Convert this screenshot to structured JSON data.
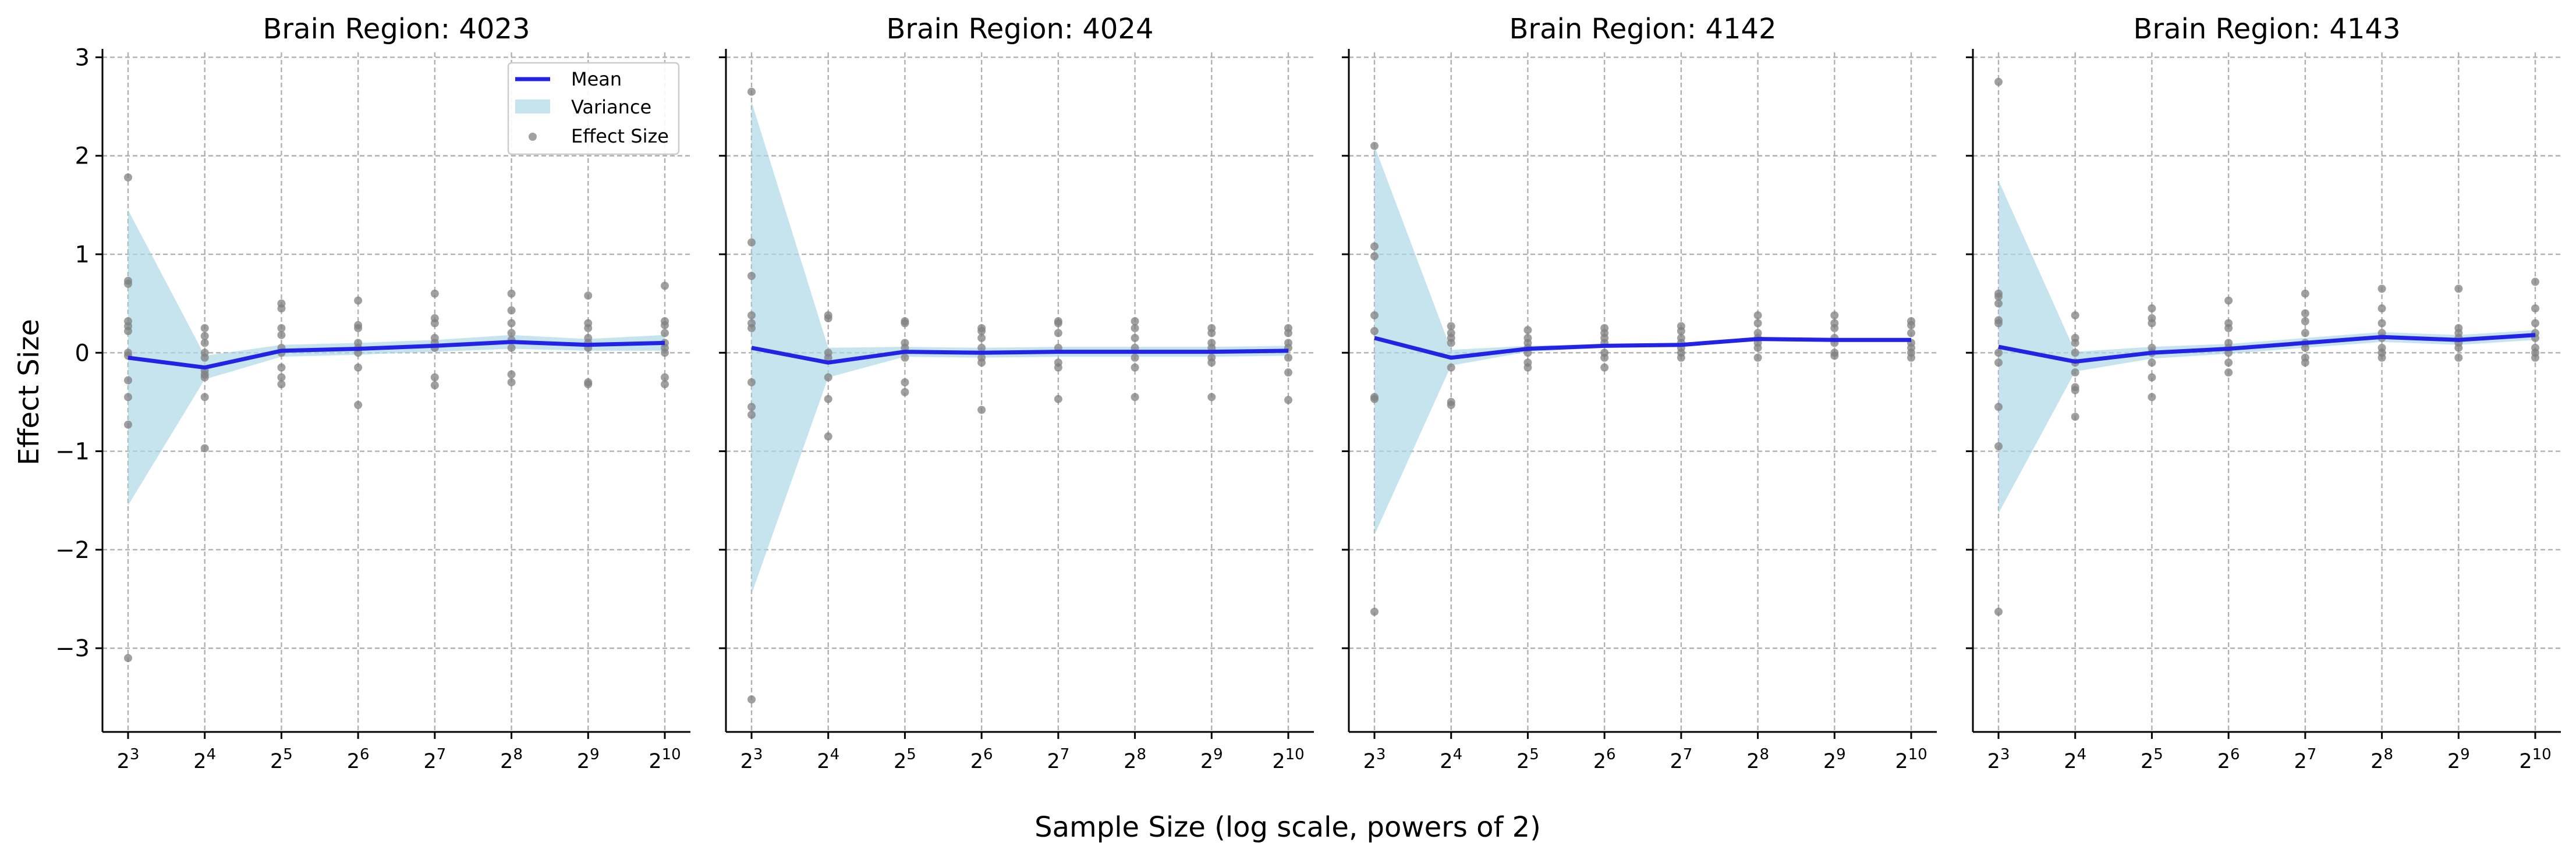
{
  "chart_data": {
    "type": "line",
    "xlabel": "Sample Size (log scale, powers of 2)",
    "ylabel": "Effect Size",
    "x_scale": "log2",
    "x_values": [
      8,
      16,
      32,
      64,
      128,
      256,
      512,
      1024
    ],
    "x_tick_labels": [
      {
        "base": "2",
        "exp": "3"
      },
      {
        "base": "2",
        "exp": "4"
      },
      {
        "base": "2",
        "exp": "5"
      },
      {
        "base": "2",
        "exp": "6"
      },
      {
        "base": "2",
        "exp": "7"
      },
      {
        "base": "2",
        "exp": "8"
      },
      {
        "base": "2",
        "exp": "9"
      },
      {
        "base": "2",
        "exp": "10"
      }
    ],
    "ylim": [
      -3.85,
      3.05
    ],
    "y_ticks": [
      3,
      2,
      1,
      0,
      -1,
      -2,
      -3
    ],
    "y_tick_labels": [
      "3",
      "2",
      "1",
      "0",
      "−1",
      "−2",
      "−3"
    ],
    "grid": true,
    "legend": {
      "placement": "top-right of first panel",
      "entries": [
        "Mean",
        "Variance",
        "Effect Size"
      ]
    },
    "colors": {
      "mean": "#2323e6",
      "variance": "#add8e6",
      "points": "#808080"
    },
    "panels": [
      {
        "title": "Brain Region: 4023",
        "mean": [
          -0.05,
          -0.15,
          0.02,
          0.04,
          0.07,
          0.11,
          0.08,
          0.1
        ],
        "var_upper": [
          1.45,
          -0.03,
          0.08,
          0.1,
          0.13,
          0.18,
          0.14,
          0.18
        ],
        "var_lower": [
          -1.55,
          -0.27,
          -0.04,
          -0.02,
          0.01,
          0.04,
          0.02,
          0.02
        ],
        "points": [
          [
            1.78,
            0.73,
            0.7,
            0.32,
            0.27,
            0.22,
            0.0,
            -0.03,
            -0.28,
            -0.45,
            -0.73,
            -3.1
          ],
          [
            0.25,
            0.17,
            0.1,
            0.0,
            -0.05,
            -0.18,
            -0.22,
            -0.25,
            -0.45,
            -0.97
          ],
          [
            0.5,
            0.45,
            0.25,
            0.18,
            0.05,
            0.0,
            -0.15,
            -0.25,
            -0.32
          ],
          [
            0.53,
            0.28,
            0.25,
            0.1,
            0.05,
            0.0,
            -0.15,
            -0.53
          ],
          [
            0.6,
            0.35,
            0.3,
            0.15,
            0.1,
            0.05,
            -0.25,
            -0.33
          ],
          [
            0.6,
            0.43,
            0.3,
            0.2,
            0.13,
            0.05,
            -0.22,
            -0.3
          ],
          [
            0.58,
            0.3,
            0.25,
            0.15,
            0.1,
            0.05,
            -0.3,
            -0.32
          ],
          [
            0.68,
            0.32,
            0.28,
            0.2,
            0.1,
            0.05,
            0.0,
            -0.25,
            -0.32
          ]
        ]
      },
      {
        "title": "Brain Region: 4024",
        "mean": [
          0.05,
          -0.1,
          0.01,
          0.0,
          0.01,
          0.01,
          0.01,
          0.02
        ],
        "var_upper": [
          2.55,
          0.05,
          0.06,
          0.05,
          0.06,
          0.06,
          0.06,
          0.07
        ],
        "var_lower": [
          -2.45,
          -0.25,
          -0.04,
          -0.05,
          -0.04,
          -0.04,
          -0.04,
          -0.03
        ],
        "points": [
          [
            2.65,
            1.12,
            0.78,
            0.38,
            0.3,
            0.25,
            -0.3,
            -0.55,
            -0.63,
            -3.52
          ],
          [
            0.38,
            0.35,
            0.0,
            -0.05,
            -0.25,
            -0.47,
            -0.85
          ],
          [
            0.32,
            0.3,
            0.1,
            0.05,
            -0.05,
            -0.3,
            -0.4
          ],
          [
            0.25,
            0.22,
            0.15,
            0.05,
            -0.05,
            -0.1,
            -0.58
          ],
          [
            0.32,
            0.3,
            0.2,
            0.05,
            -0.1,
            -0.15,
            -0.47
          ],
          [
            0.32,
            0.25,
            0.15,
            0.05,
            -0.05,
            -0.15,
            -0.45
          ],
          [
            0.25,
            0.2,
            0.1,
            0.05,
            -0.05,
            -0.1,
            -0.45
          ],
          [
            0.25,
            0.2,
            0.1,
            0.05,
            -0.05,
            -0.2,
            -0.48
          ]
        ]
      },
      {
        "title": "Brain Region: 4142",
        "mean": [
          0.15,
          -0.05,
          0.04,
          0.07,
          0.08,
          0.14,
          0.13,
          0.13
        ],
        "var_upper": [
          2.1,
          0.03,
          0.07,
          0.09,
          0.1,
          0.16,
          0.15,
          0.15
        ],
        "var_lower": [
          -1.85,
          -0.13,
          0.01,
          0.05,
          0.06,
          0.12,
          0.11,
          0.11
        ],
        "points": [
          [
            2.1,
            1.08,
            0.98,
            0.38,
            0.22,
            -0.45,
            -0.47,
            -2.63
          ],
          [
            0.27,
            0.2,
            0.15,
            0.1,
            -0.15,
            -0.5,
            -0.53
          ],
          [
            0.23,
            0.15,
            0.1,
            0.05,
            0.0,
            -0.1,
            -0.15
          ],
          [
            0.25,
            0.2,
            0.15,
            0.1,
            0.0,
            -0.05,
            -0.15
          ],
          [
            0.27,
            0.22,
            0.15,
            0.1,
            0.05,
            0.0,
            -0.05
          ],
          [
            0.38,
            0.3,
            0.2,
            0.15,
            0.1,
            0.05,
            -0.05
          ],
          [
            0.38,
            0.3,
            0.25,
            0.15,
            0.1,
            0.0,
            -0.03
          ],
          [
            0.32,
            0.28,
            0.2,
            0.1,
            0.05,
            0.0,
            -0.05
          ]
        ]
      },
      {
        "title": "Brain Region: 4143",
        "mean": [
          0.06,
          -0.09,
          0.0,
          0.04,
          0.1,
          0.16,
          0.13,
          0.18
        ],
        "var_upper": [
          1.75,
          0.01,
          0.06,
          0.09,
          0.15,
          0.21,
          0.18,
          0.23
        ],
        "var_lower": [
          -1.63,
          -0.19,
          -0.06,
          -0.01,
          0.05,
          0.11,
          0.08,
          0.13
        ],
        "points": [
          [
            2.75,
            0.6,
            0.57,
            0.5,
            0.33,
            0.3,
            0.0,
            -0.1,
            -0.55,
            -0.95,
            -2.63
          ],
          [
            0.38,
            0.15,
            0.1,
            0.0,
            -0.1,
            -0.2,
            -0.35,
            -0.38,
            -0.65
          ],
          [
            0.45,
            0.35,
            0.3,
            0.05,
            0.0,
            -0.1,
            -0.25,
            -0.45
          ],
          [
            0.53,
            0.3,
            0.25,
            0.1,
            0.05,
            0.0,
            -0.1,
            -0.2
          ],
          [
            0.6,
            0.4,
            0.32,
            0.2,
            0.1,
            0.05,
            -0.05,
            -0.1
          ],
          [
            0.65,
            0.45,
            0.3,
            0.2,
            0.15,
            0.05,
            0.0,
            -0.05
          ],
          [
            0.65,
            0.25,
            0.2,
            0.15,
            0.1,
            0.05,
            -0.05
          ],
          [
            0.72,
            0.45,
            0.3,
            0.2,
            0.15,
            0.05,
            0.0,
            -0.05
          ]
        ]
      }
    ]
  }
}
